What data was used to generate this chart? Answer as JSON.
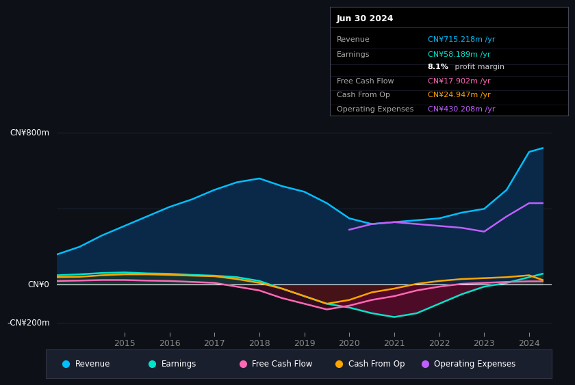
{
  "background_color": "#0d1117",
  "plot_bg_color": "#0d1117",
  "ylabel_800": "CN¥800m",
  "ylabel_0": "CN¥0",
  "ylabel_neg200": "-CN¥200m",
  "years": [
    2013.5,
    2014.0,
    2014.5,
    2015.0,
    2015.5,
    2016.0,
    2016.5,
    2017.0,
    2017.5,
    2018.0,
    2018.5,
    2019.0,
    2019.5,
    2020.0,
    2020.5,
    2021.0,
    2021.5,
    2022.0,
    2022.5,
    2023.0,
    2023.5,
    2024.0,
    2024.3
  ],
  "revenue": [
    160,
    200,
    260,
    310,
    360,
    410,
    450,
    500,
    540,
    560,
    520,
    490,
    430,
    350,
    320,
    330,
    340,
    350,
    380,
    400,
    500,
    700,
    720
  ],
  "earnings": [
    50,
    55,
    62,
    65,
    60,
    58,
    52,
    48,
    40,
    20,
    -20,
    -60,
    -100,
    -120,
    -150,
    -170,
    -150,
    -100,
    -50,
    -10,
    10,
    40,
    58
  ],
  "free_cash_flow": [
    20,
    22,
    25,
    25,
    22,
    20,
    15,
    10,
    -10,
    -30,
    -70,
    -100,
    -130,
    -110,
    -80,
    -60,
    -30,
    -10,
    5,
    10,
    15,
    18,
    18
  ],
  "cash_from_op": [
    40,
    42,
    50,
    55,
    55,
    52,
    48,
    45,
    30,
    10,
    -20,
    -60,
    -100,
    -80,
    -40,
    -20,
    5,
    20,
    30,
    35,
    40,
    50,
    25
  ],
  "operating_expenses": [
    0,
    0,
    0,
    0,
    0,
    0,
    0,
    0,
    0,
    0,
    0,
    0,
    0,
    290,
    320,
    330,
    320,
    310,
    300,
    280,
    360,
    430,
    430
  ],
  "revenue_color": "#00bfff",
  "revenue_fill_color": "#0a2a4a",
  "earnings_color": "#00e5cc",
  "earnings_fill_color": "#1a3a2a",
  "free_cash_flow_color": "#ff69b4",
  "free_cash_flow_fill_color": "#5a0a2a",
  "cash_from_op_color": "#ffa500",
  "operating_expenses_color": "#bf5fff",
  "operating_expenses_fill_color": "#1a0a3a",
  "zero_line_color": "#ffffff",
  "grid_color": "#1e2a3a",
  "tick_color": "#888888",
  "legend_bg": "#1a1f2e",
  "legend_border": "#333344",
  "xtick_labels": [
    "2015",
    "2016",
    "2017",
    "2018",
    "2019",
    "2020",
    "2021",
    "2022",
    "2023",
    "2024"
  ],
  "xtick_positions": [
    2015,
    2016,
    2017,
    2018,
    2019,
    2020,
    2021,
    2022,
    2023,
    2024
  ],
  "ylim": [
    -250,
    900
  ],
  "xlim": [
    2013.5,
    2024.5
  ],
  "op_exp_start_x": 2020,
  "info_title": "Jun 30 2024",
  "info_rows": [
    {
      "label": "Revenue",
      "value": "CN¥715.218m /yr",
      "value_color": "#00bfff"
    },
    {
      "label": "Earnings",
      "value": "CN¥58.189m /yr",
      "value_color": "#00e5cc"
    },
    {
      "label": "",
      "value": "8.1% profit margin",
      "value_color": "#cccccc"
    },
    {
      "label": "Free Cash Flow",
      "value": "CN¥17.902m /yr",
      "value_color": "#ff69b4"
    },
    {
      "label": "Cash From Op",
      "value": "CN¥24.947m /yr",
      "value_color": "#ffa500"
    },
    {
      "label": "Operating Expenses",
      "value": "CN¥430.208m /yr",
      "value_color": "#bf5fff"
    }
  ],
  "legend_items": [
    {
      "color": "#00bfff",
      "label": "Revenue"
    },
    {
      "color": "#00e5cc",
      "label": "Earnings"
    },
    {
      "color": "#ff69b4",
      "label": "Free Cash Flow"
    },
    {
      "color": "#ffa500",
      "label": "Cash From Op"
    },
    {
      "color": "#bf5fff",
      "label": "Operating Expenses"
    }
  ]
}
